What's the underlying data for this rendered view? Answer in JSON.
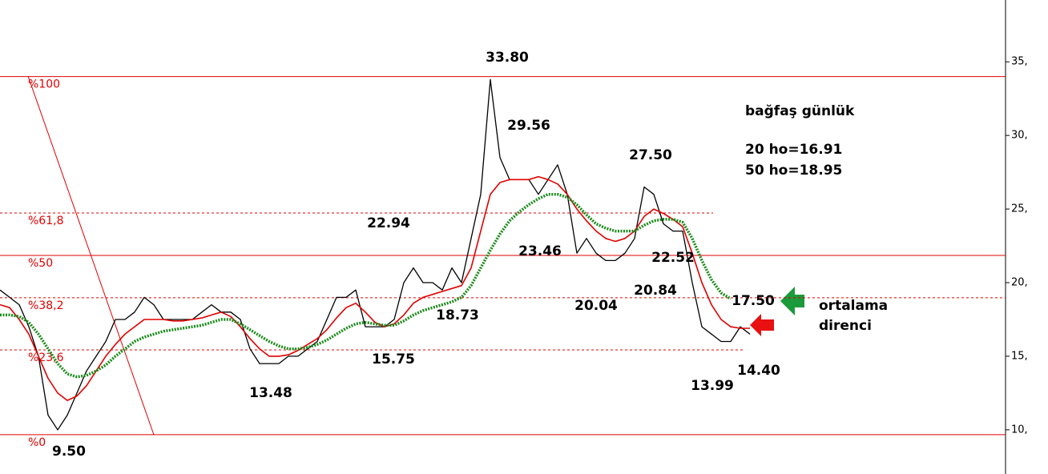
{
  "chart_data": {
    "type": "line",
    "ylim": [
      7.0,
      39.2
    ],
    "yticks": [
      {
        "value": 35,
        "label": "35,"
      },
      {
        "value": 30,
        "label": "30,"
      },
      {
        "value": 25,
        "label": "25,"
      },
      {
        "value": 20,
        "label": "20,"
      },
      {
        "value": 15,
        "label": "15,"
      },
      {
        "value": 10,
        "label": "10,"
      }
    ],
    "series": [
      {
        "color": "#000000",
        "width": 1.3,
        "style": "solid",
        "values": [
          19.5,
          19,
          18.5,
          17,
          15,
          11,
          10,
          11,
          12.5,
          14,
          15,
          16,
          17.5,
          17.5,
          18,
          19,
          18.5,
          17.5,
          17.5,
          17.5,
          17.5,
          18,
          18.5,
          18,
          18,
          17.5,
          15.5,
          14.5,
          14.5,
          14.5,
          15,
          15,
          15.5,
          16,
          17.5,
          19,
          19,
          19.5,
          17,
          17,
          17,
          17.5,
          20,
          21,
          20,
          20,
          19.5,
          21,
          20,
          23,
          26,
          33.8,
          28.5,
          27,
          27,
          27,
          26,
          27,
          28,
          26,
          22,
          23,
          22,
          21.5,
          21.5,
          22,
          23,
          26.5,
          26,
          24,
          23.5,
          23.5,
          20,
          17,
          16.5,
          16,
          16,
          17,
          16.5
        ]
      },
      {
        "color": "#e00000",
        "width": 1.6,
        "style": "solid",
        "values": [
          18.5,
          18.3,
          17.5,
          16.5,
          15,
          13.5,
          12.5,
          12,
          12.3,
          13,
          14,
          15,
          15.8,
          16.5,
          17,
          17.5,
          17.5,
          17.5,
          17.4,
          17.4,
          17.5,
          17.6,
          17.8,
          18,
          17.7,
          17,
          16.2,
          15.5,
          15,
          15,
          15.1,
          15.4,
          15.8,
          16.2,
          16.8,
          17.6,
          18.3,
          18.6,
          18,
          17.3,
          17,
          17.2,
          17.8,
          18.6,
          19,
          19.2,
          19.4,
          19.6,
          19.8,
          21,
          23.5,
          26,
          26.8,
          27,
          27,
          27,
          27.2,
          27,
          26.7,
          26,
          25,
          24.2,
          23.5,
          23,
          22.8,
          23,
          23.5,
          24.5,
          25,
          24.7,
          24.3,
          23.8,
          22,
          20,
          18.5,
          17.5,
          17,
          16.9,
          16.9
        ]
      },
      {
        "color": "#1a8a1a",
        "width": 3.5,
        "style": "dotted",
        "values": [
          17.8,
          17.8,
          17.7,
          17.3,
          16.5,
          15.5,
          14.5,
          13.8,
          13.6,
          13.7,
          14,
          14.4,
          15,
          15.5,
          16,
          16.3,
          16.5,
          16.7,
          16.8,
          16.9,
          17,
          17.1,
          17.3,
          17.5,
          17.5,
          17.2,
          16.8,
          16.4,
          16,
          15.7,
          15.5,
          15.5,
          15.6,
          15.8,
          16.1,
          16.5,
          16.9,
          17.2,
          17.3,
          17.2,
          17.1,
          17.1,
          17.4,
          17.8,
          18.1,
          18.3,
          18.5,
          18.7,
          19,
          19.8,
          21,
          22.2,
          23.3,
          24.2,
          24.8,
          25.3,
          25.7,
          26,
          26,
          25.8,
          25.3,
          24.6,
          24,
          23.7,
          23.5,
          23.5,
          23.5,
          23.9,
          24.2,
          24.3,
          24.3,
          24.1,
          23,
          21.5,
          20.2,
          19.3,
          18.9,
          null,
          null
        ]
      }
    ],
    "fib_levels": [
      {
        "label": "%100",
        "value": 34.0,
        "style": "solid"
      },
      {
        "label": "%61,8",
        "value": 24.73,
        "style": "dashed"
      },
      {
        "label": "%50",
        "value": 21.85,
        "style": "solid"
      },
      {
        "label": "%38,2",
        "value": 18.97,
        "style": "dashed"
      },
      {
        "label": "%23,6",
        "value": 15.43,
        "style": "dashed"
      },
      {
        "label": "%0",
        "value": 9.67,
        "style": "solid"
      }
    ],
    "fib_color": "#e00000",
    "annotations": [
      "33.80",
      "29.56",
      "27.50",
      "22.94",
      "23.46",
      "22.52",
      "20.84",
      "17.50",
      "18.73",
      "20.04",
      "15.75",
      "13.48",
      "13.99",
      "14.40",
      "9.50"
    ],
    "notes": [
      "bağfaş günlük",
      "20 ho=16.91",
      "50 ho=18.95"
    ],
    "arrow_note": [
      "ortalama",
      "direnci"
    ]
  }
}
